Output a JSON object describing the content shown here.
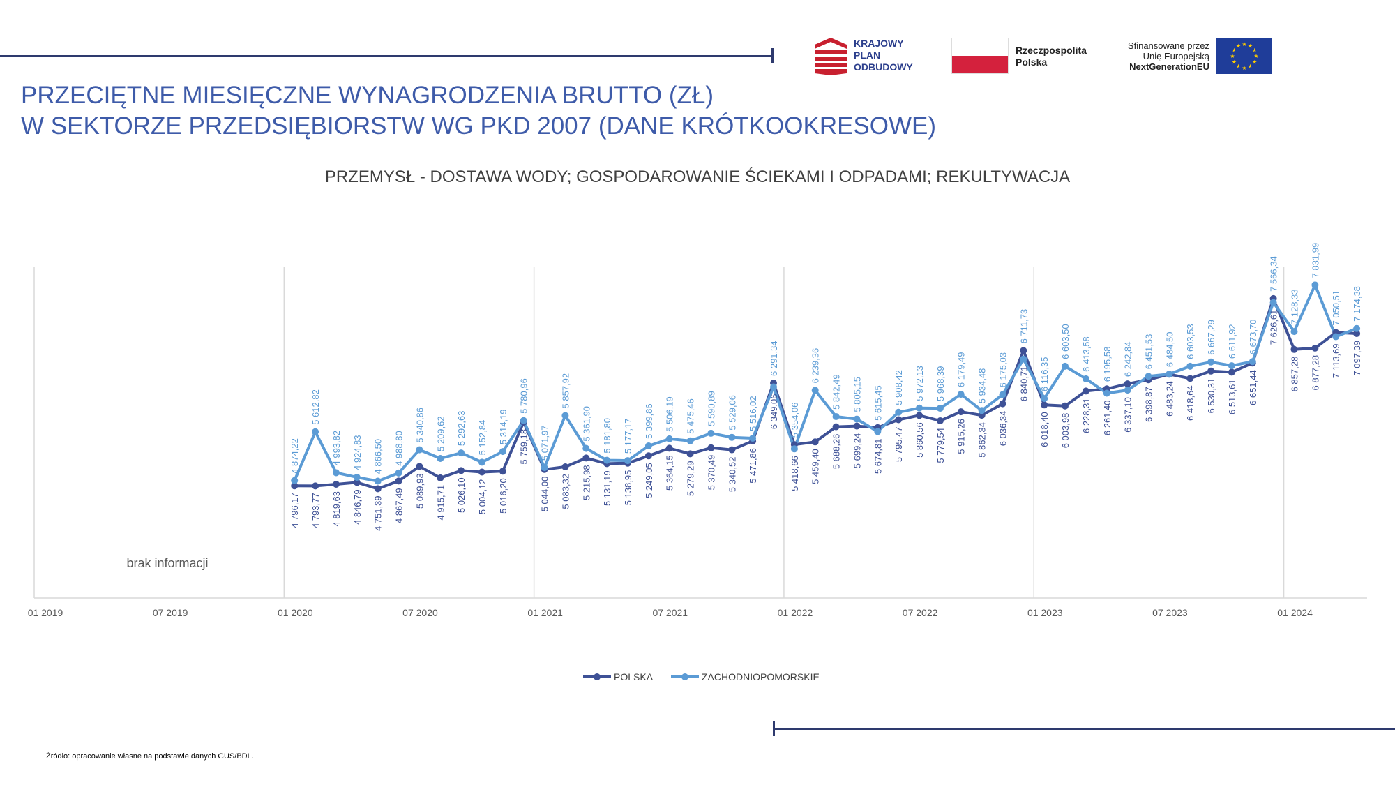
{
  "header": {
    "title_line1": "PRZECIĘTNE MIESIĘCZNE WYNAGRODZENIA BRUTTO (ZŁ)",
    "title_line2": "W SEKTORZE PRZEDSIĘBIORSTW WG PKD 2007 (DANE KRÓTKOOKRESOWE)"
  },
  "logos": {
    "kpo_line1": "KRAJOWY",
    "kpo_line2": "PLAN",
    "kpo_line3": "ODBUDOWY",
    "rp_line1": "Rzeczpospolita",
    "rp_line2": "Polska",
    "eu_line1": "Sfinansowane przez",
    "eu_line2": "Unię Europejską",
    "eu_line3": "NextGenerationEU",
    "kpo_color": "#c8202f",
    "rp_red": "#d4213d",
    "eu_blue": "#1f3d99",
    "eu_star": "#ffcc00"
  },
  "footer": {
    "source": "Źródło: opracowanie własne na podstawie danych GUS/BDL."
  },
  "chart_data": {
    "type": "line",
    "title": "PRZEMYSŁ - DOSTAWA WODY; GOSPODAROWANIE ŚCIEKAMI I ODPADAMI; REKULTYWACJA",
    "x_tick_labels": [
      "01 2019",
      "07 2019",
      "01 2020",
      "07 2020",
      "01 2021",
      "07 2021",
      "01 2022",
      "07 2022",
      "01 2023",
      "07 2023",
      "01 2024"
    ],
    "no_data_label": "brak informacji",
    "x_start": "2019-01",
    "x_end": "2024-04",
    "data_start": "2020-01",
    "ylim": [
      3100,
      8100
    ],
    "grid": "vertical lines at January",
    "legend_position": "bottom",
    "series": [
      {
        "name": "POLSKA",
        "color": "#3e5196",
        "values": [
          4796.17,
          4793.77,
          4819.63,
          4846.79,
          4751.39,
          4867.49,
          5089.93,
          4915.71,
          5026.1,
          5004.12,
          5016.2,
          5759.18,
          5044.0,
          5083.32,
          5215.98,
          5131.19,
          5138.95,
          5249.05,
          5364.15,
          5279.29,
          5370.49,
          5340.52,
          5471.86,
          6349.06,
          5418.66,
          5459.4,
          5688.26,
          5699.24,
          5674.81,
          5795.47,
          5860.56,
          5779.54,
          5915.26,
          5862.34,
          6036.34,
          6840.71,
          6018.4,
          6003.98,
          6228.31,
          6261.4,
          6337.1,
          6398.87,
          6483.24,
          6418.64,
          6530.31,
          6513.61,
          6651.44,
          7626.61,
          6857.28,
          6877.28,
          7113.69,
          7097.39
        ],
        "labels": [
          "4 796,17",
          "4 793,77",
          "4 819,63",
          "4 846,79",
          "4 751,39",
          "4 867,49",
          "5 089,93",
          "4 915,71",
          "5 026,10",
          "5 004,12",
          "5 016,20",
          "5 759,18",
          "5 044,00",
          "5 083,32",
          "5 215,98",
          "5 131,19",
          "5 138,95",
          "5 249,05",
          "5 364,15",
          "5 279,29",
          "5 370,49",
          "5 340,52",
          "5 471,86",
          "6 349,06",
          "5 418,66",
          "5 459,40",
          "5 688,26",
          "5 699,24",
          "5 674,81",
          "5 795,47",
          "5 860,56",
          "5 779,54",
          "5 915,26",
          "5 862,34",
          "6 036,34",
          "6 840,71",
          "6 018,40",
          "6 003,98",
          "6 228,31",
          "6 261,40",
          "6 337,10",
          "6 398,87",
          "6 483,24",
          "6 418,64",
          "6 530,31",
          "6 513,61",
          "6 651,44",
          "7 626,61",
          "6 857,28",
          "6 877,28",
          "7 113,69",
          "7 097,39"
        ]
      },
      {
        "name": "ZACHODNIOPOMORSKIE",
        "color": "#5b9bd5",
        "values": [
          4874.22,
          5612.82,
          4993.82,
          4924.83,
          4866.5,
          4988.8,
          5340.86,
          5209.62,
          5292.63,
          5152.84,
          5314.19,
          5780.96,
          5071.97,
          5857.92,
          5361.9,
          5181.8,
          5177.17,
          5399.86,
          5506.19,
          5475.46,
          5590.89,
          5529.06,
          5516.02,
          6291.34,
          5354.06,
          6239.36,
          5842.49,
          5805.15,
          5615.45,
          5908.42,
          5972.13,
          5968.39,
          6179.49,
          5934.48,
          6175.03,
          6711.73,
          6116.35,
          6603.5,
          6413.58,
          6195.58,
          6242.84,
          6451.53,
          6484.5,
          6603.53,
          6667.29,
          6611.92,
          6673.7,
          7566.34,
          7128.33,
          7831.99,
          7050.51,
          7174.38
        ],
        "labels": [
          "4 874,22",
          "5 612,82",
          "4 993,82",
          "4 924,83",
          "4 866,50",
          "4 988,80",
          "5 340,86",
          "5 209,62",
          "5 292,63",
          "5 152,84",
          "5 314,19",
          "5 780,96",
          "5 071,97",
          "5 857,92",
          "5 361,90",
          "5 181,80",
          "5 177,17",
          "5 399,86",
          "5 506,19",
          "5 475,46",
          "5 590,89",
          "5 529,06",
          "5 516,02",
          "6 291,34",
          "5 354,06",
          "6 239,36",
          "5 842,49",
          "5 805,15",
          "5 615,45",
          "5 908,42",
          "5 972,13",
          "5 968,39",
          "6 179,49",
          "5 934,48",
          "6 175,03",
          "6 711,73",
          "6 116,35",
          "6 603,50",
          "6 413,58",
          "6 195,58",
          "6 242,84",
          "6 451,53",
          "6 484,50",
          "6 603,53",
          "6 667,29",
          "6 611,92",
          "6 673,70",
          "7 566,34",
          "7 128,33",
          "7 831,99",
          "7 050,51",
          "7 174,38"
        ]
      }
    ]
  }
}
